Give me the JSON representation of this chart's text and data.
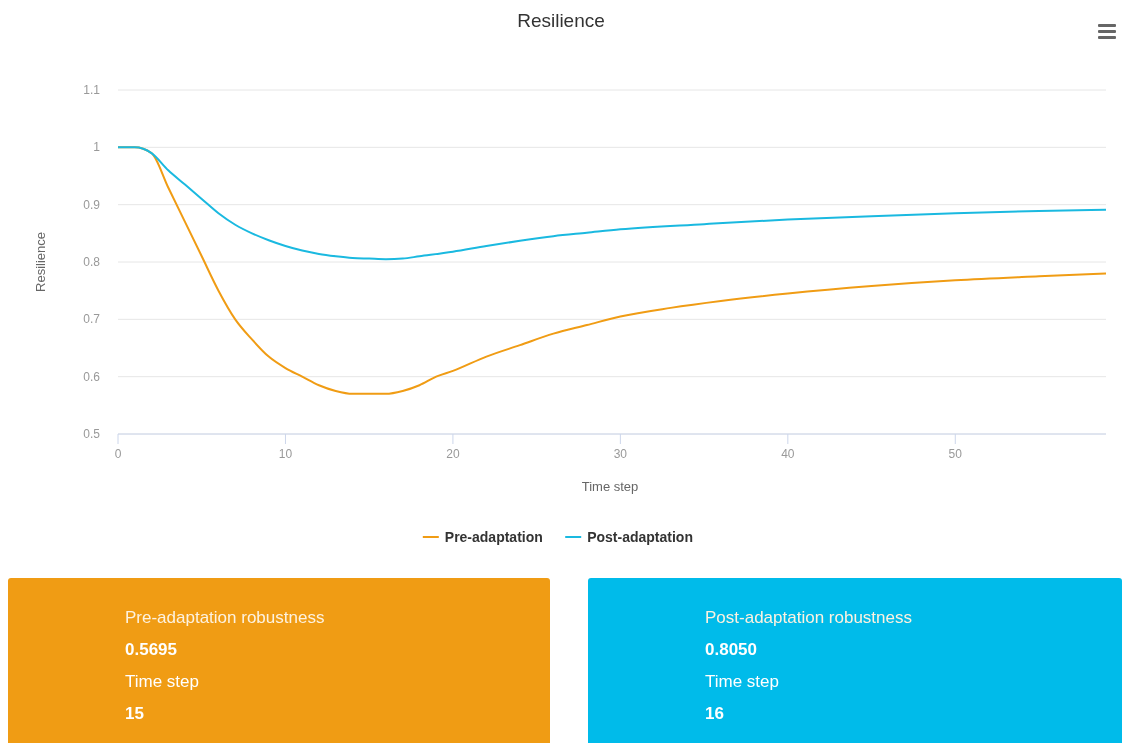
{
  "chart_data": [
    {
      "type": "line",
      "title": "Resilience",
      "xlabel": "Time step",
      "ylabel": "Resilience",
      "xlim": [
        0,
        59
      ],
      "xticks": [
        0,
        10,
        20,
        30,
        40,
        50
      ],
      "ylim": [
        0.5,
        1.1
      ],
      "yticks": [
        0.5,
        0.6,
        0.7,
        0.8,
        0.9,
        1,
        1.1
      ],
      "grid": "y",
      "legend": "bottom",
      "marker": "none",
      "line_style": "solid",
      "series": [
        {
          "name": "Pre-adaptation",
          "color": "#f09c14",
          "x": [
            0,
            1,
            2,
            3,
            4,
            5,
            6,
            7,
            8,
            9,
            10,
            11,
            12,
            13,
            14,
            15,
            16,
            17,
            18,
            19,
            20,
            22,
            24,
            26,
            28,
            30,
            33,
            36,
            40,
            45,
            50,
            55,
            59
          ],
          "values": [
            1,
            1,
            0.99,
            0.93,
            0.87,
            0.81,
            0.75,
            0.7,
            0.665,
            0.635,
            0.615,
            0.6,
            0.585,
            0.575,
            0.57,
            0.57,
            0.57,
            0.575,
            0.585,
            0.6,
            0.61,
            0.635,
            0.655,
            0.675,
            0.69,
            0.705,
            0.72,
            0.732,
            0.745,
            0.758,
            0.768,
            0.775,
            0.78
          ]
        },
        {
          "name": "Post-adaptation",
          "color": "#1ab9e0",
          "x": [
            0,
            1,
            2,
            3,
            4,
            5,
            6,
            7,
            8,
            9,
            10,
            11,
            12,
            13,
            14,
            15,
            16,
            17,
            18,
            20,
            22,
            24,
            26,
            28,
            30,
            35,
            40,
            45,
            50,
            55,
            59
          ],
          "values": [
            1,
            1,
            0.99,
            0.96,
            0.935,
            0.91,
            0.885,
            0.865,
            0.85,
            0.838,
            0.828,
            0.82,
            0.814,
            0.81,
            0.807,
            0.806,
            0.805,
            0.806,
            0.81,
            0.818,
            0.828,
            0.837,
            0.845,
            0.851,
            0.857,
            0.866,
            0.874,
            0.88,
            0.885,
            0.889,
            0.891
          ]
        }
      ]
    },
    {
      "type": "other",
      "title": "Pre-adaptation robustness",
      "annotations": [
        "0.5695",
        "Time step",
        "15"
      ],
      "series": [
        {
          "color": "#f09c14"
        }
      ]
    },
    {
      "type": "other",
      "title": "Post-adaptation robustness",
      "annotations": [
        "0.8050",
        "Time step",
        "16"
      ],
      "series": [
        {
          "color": "#00bbea"
        }
      ]
    }
  ]
}
